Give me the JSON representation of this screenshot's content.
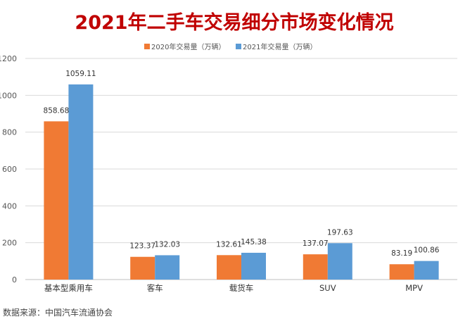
{
  "chart_data": {
    "type": "bar",
    "title": "2021年二手车交易细分市场变化情况",
    "categories": [
      "基本型乘用车",
      "客车",
      "载货车",
      "SUV",
      "MPV"
    ],
    "series": [
      {
        "name": "2020年交易量（万辆）",
        "values": [
          858.68,
          123.37,
          132.61,
          137.07,
          83.19
        ],
        "labels": [
          "858.68",
          "123.37",
          "132.61",
          "137.07",
          "83.19"
        ]
      },
      {
        "name": "2021年交易量（万辆）",
        "values": [
          1059.11,
          132.03,
          145.38,
          197.63,
          100.86
        ],
        "labels": [
          "1059.11",
          "132.03",
          "145.38",
          "197.63",
          "100.86"
        ]
      }
    ],
    "yticks": [
      "0",
      "200",
      "400",
      "600",
      "800",
      "1000",
      "1200"
    ],
    "ylim": [
      0,
      1200
    ],
    "grid": true,
    "legend": "top-center",
    "colors": {
      "series_2020": "#F07A34",
      "series_2021": "#5B9BD5",
      "title": "#C00000"
    }
  },
  "source_note": "数据来源：中国汽车流通协会"
}
